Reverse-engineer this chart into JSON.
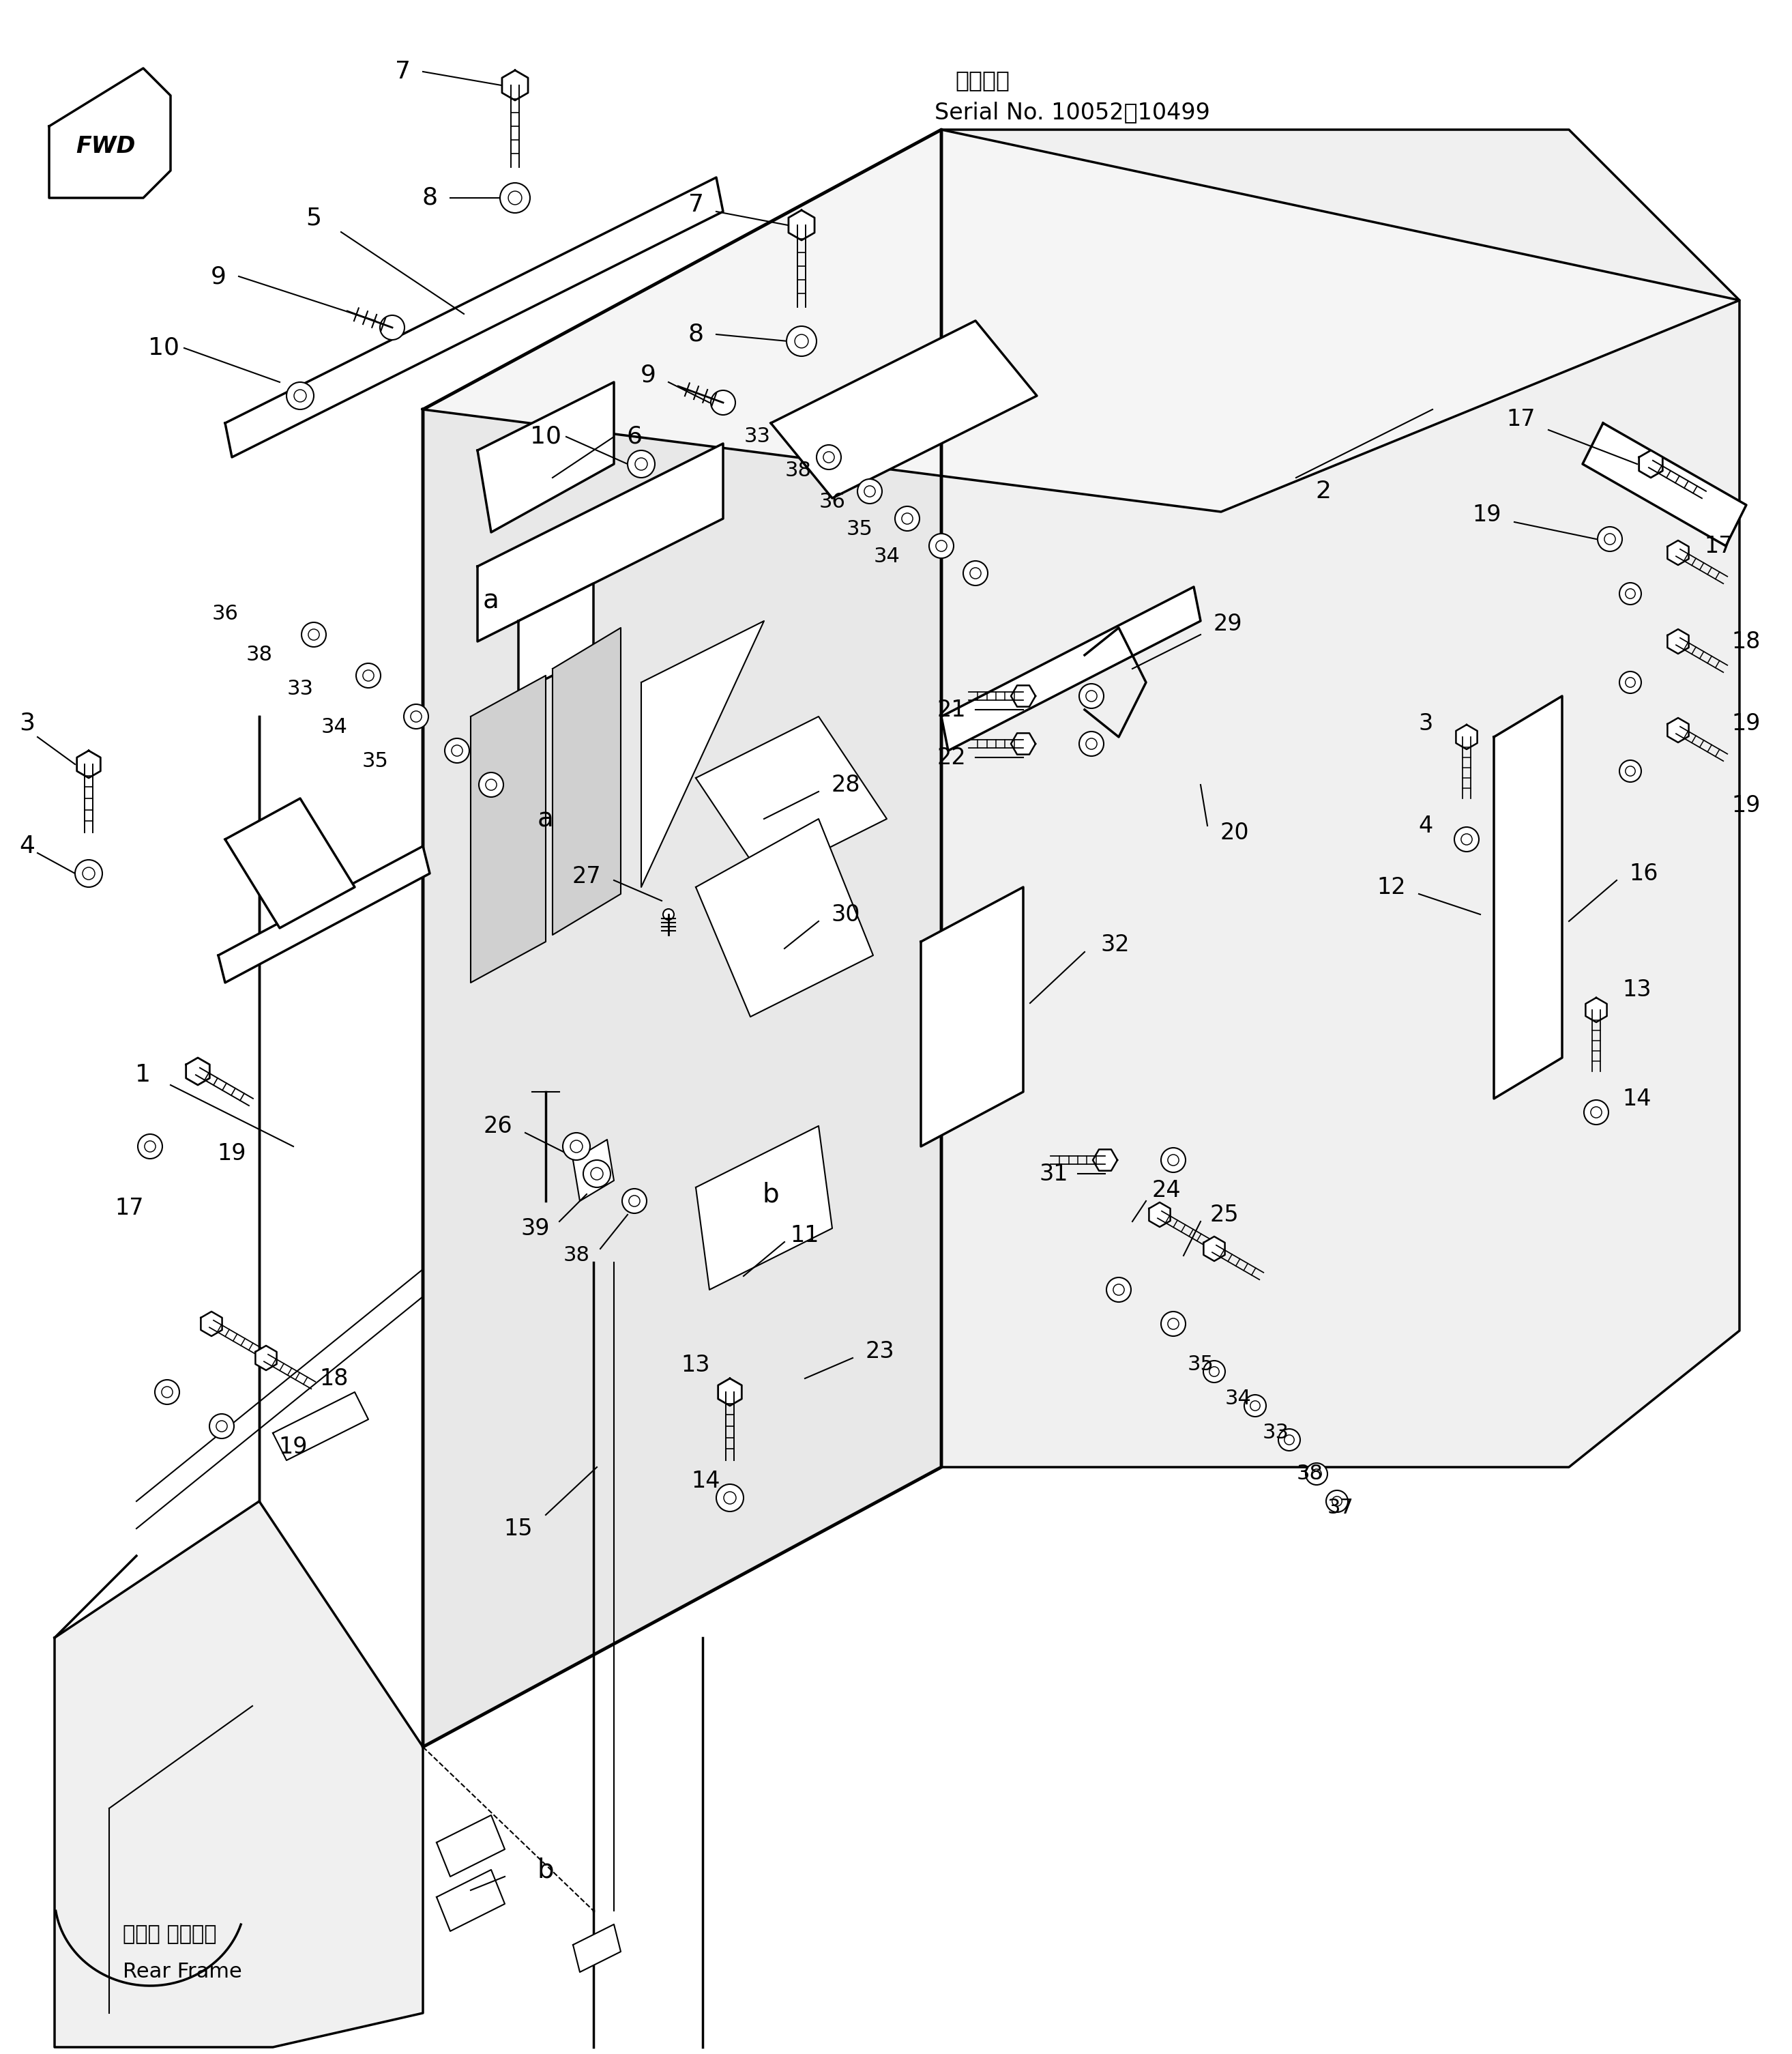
{
  "bg_color": "#ffffff",
  "line_color": "#000000",
  "fig_width": 26.27,
  "fig_height": 30.1,
  "title_jp": "適用号機",
  "title_en": "Serial No. 10052～10499",
  "fwd_label": "FWD",
  "rear_frame_jp": "リヤー フレーム",
  "rear_frame_en": "Rear Frame"
}
